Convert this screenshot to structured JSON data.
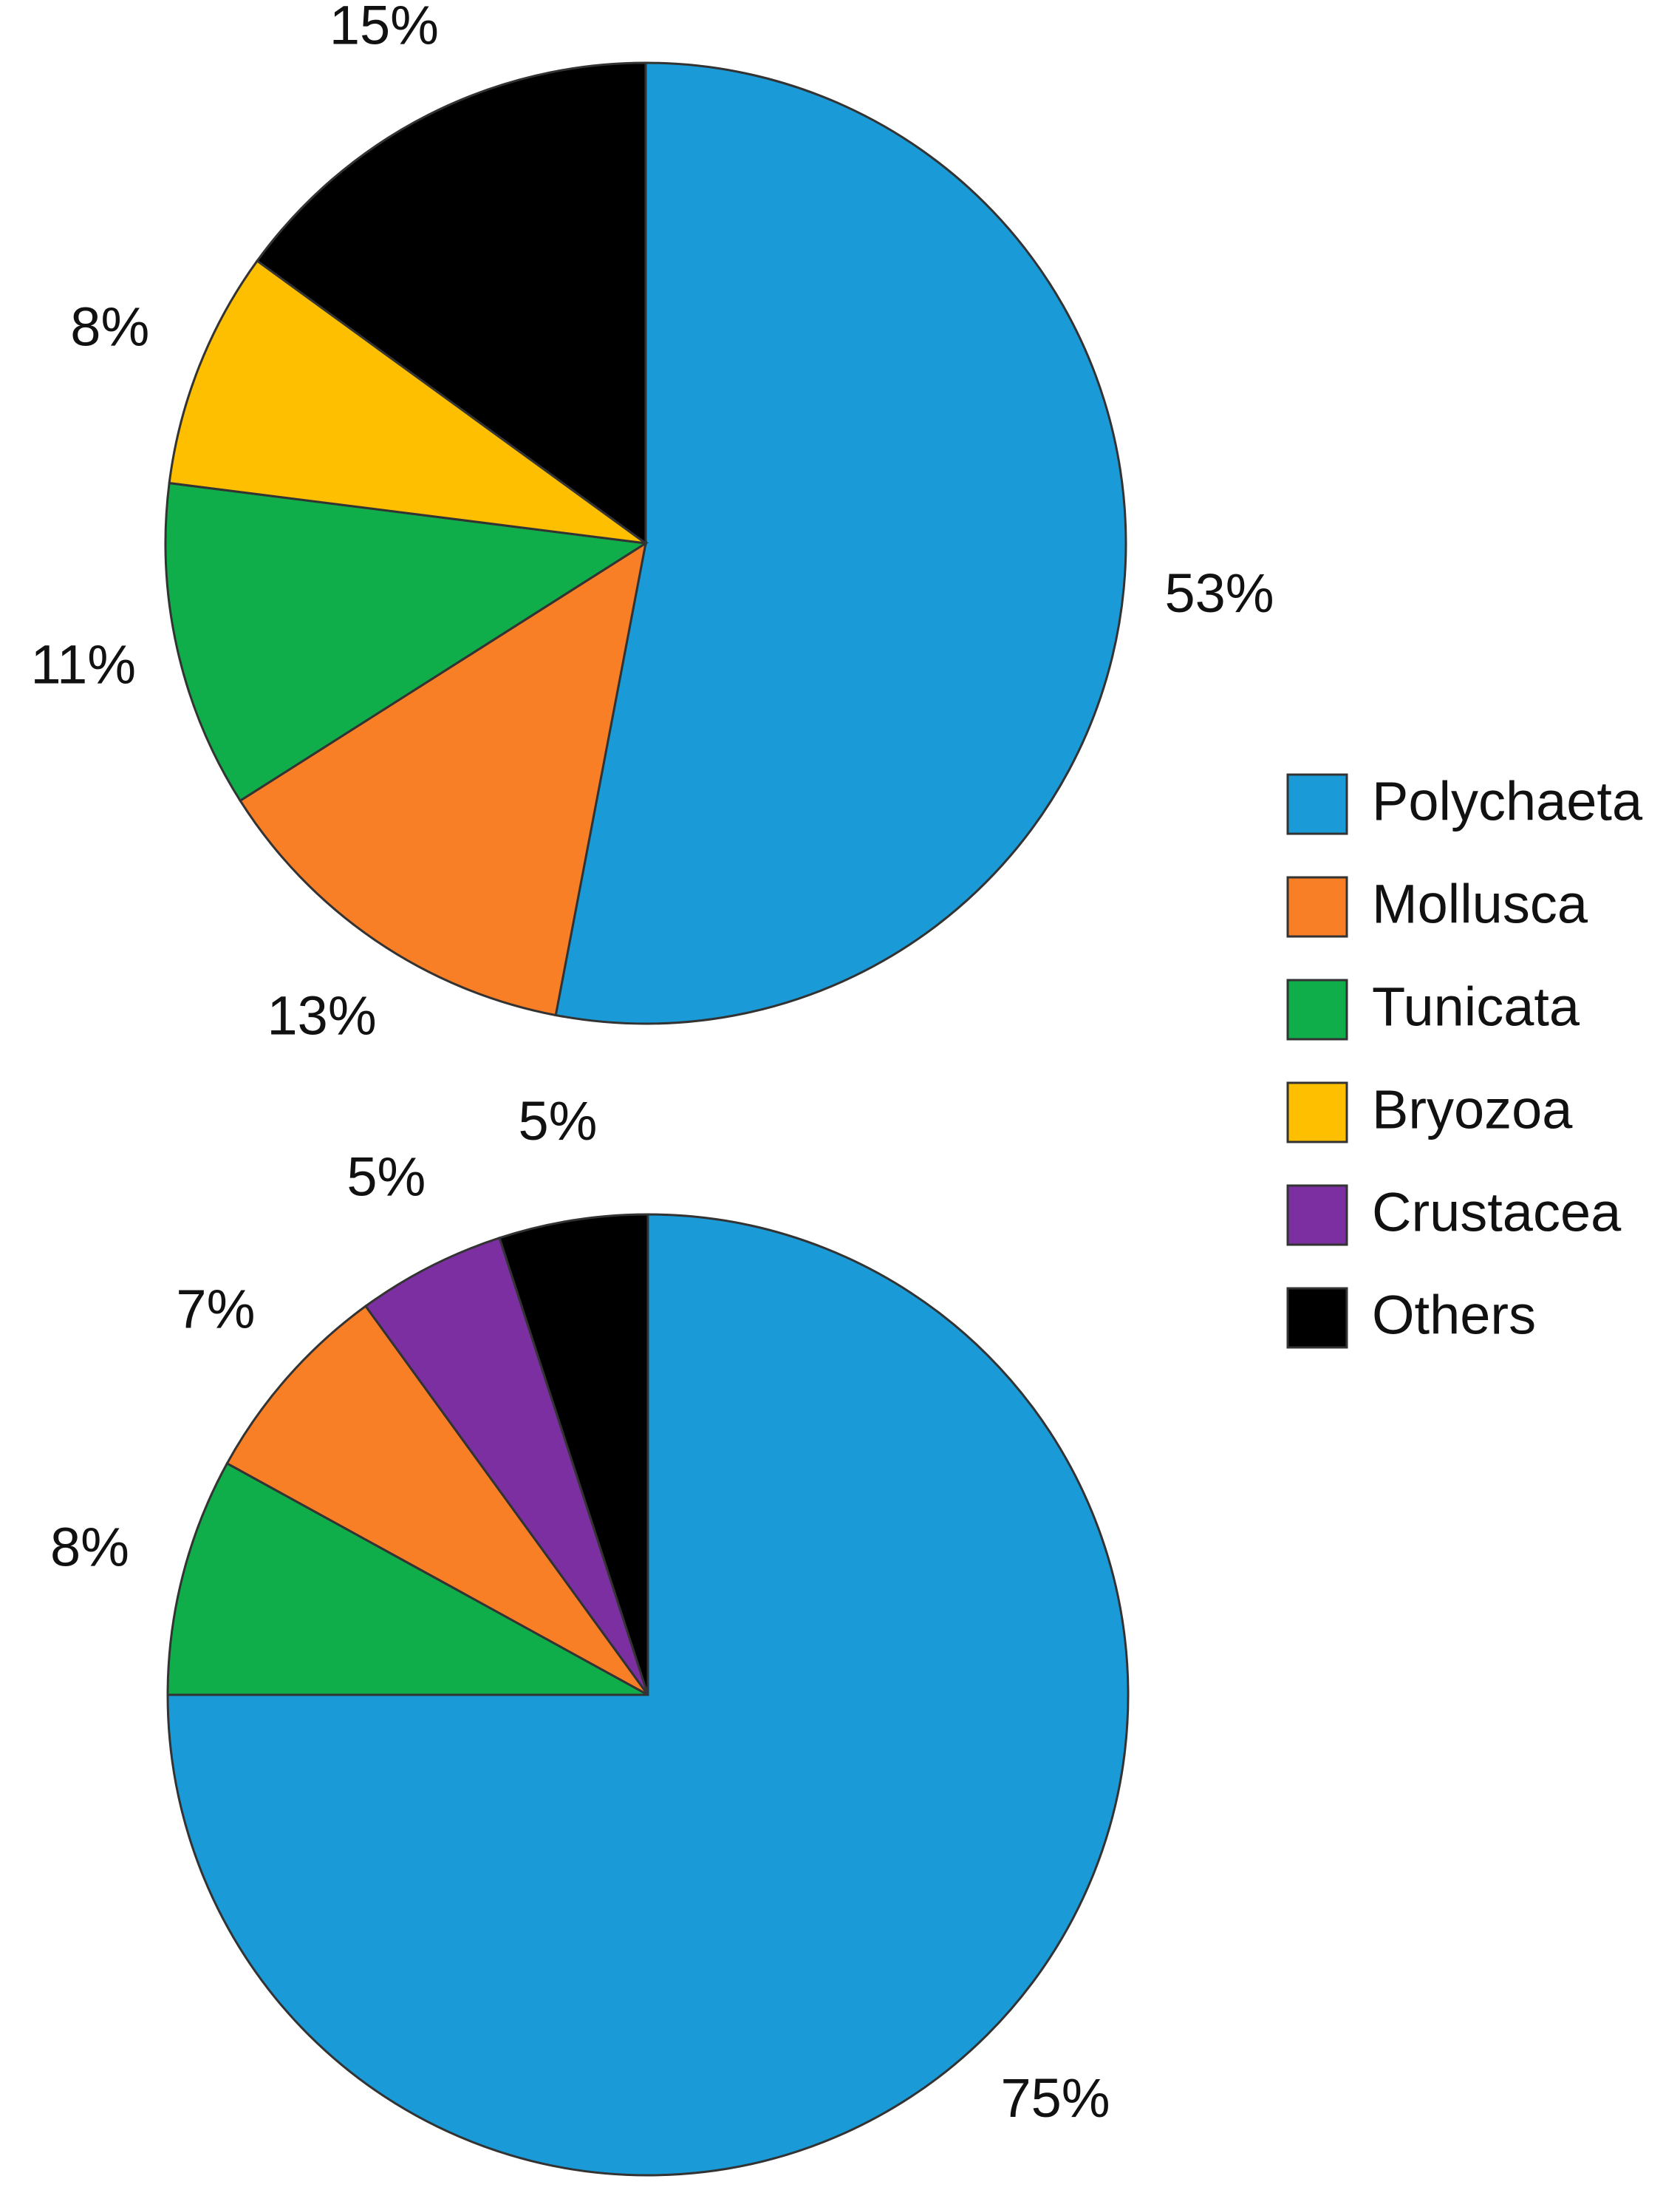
{
  "chart_data": [
    {
      "type": "pie",
      "categories": [
        "Polychaeta",
        "Mollusca",
        "Tunicata",
        "Bryozoa",
        "Others"
      ],
      "values": [
        53,
        13,
        11,
        8,
        15
      ],
      "value_labels": [
        "53%",
        "13%",
        "11%",
        "8%",
        "15%"
      ],
      "colors": [
        "#1a9bd7",
        "#f97f26",
        "#0fae4b",
        "#fdbf00",
        "#000000"
      ]
    },
    {
      "type": "pie",
      "categories": [
        "Polychaeta",
        "Tunicata",
        "Mollusca",
        "Crustacea",
        "Others"
      ],
      "values": [
        75,
        8,
        7,
        5,
        5
      ],
      "value_labels": [
        "75%",
        "8%",
        "7%",
        "5%",
        "5%"
      ],
      "colors": [
        "#1a9bd7",
        "#0fae4b",
        "#f97f26",
        "#7b2fa0",
        "#000000"
      ]
    }
  ],
  "legend": {
    "items": [
      {
        "name": "Polychaeta",
        "color": "#1a9bd7"
      },
      {
        "name": "Mollusca",
        "color": "#f97f26"
      },
      {
        "name": "Tunicata",
        "color": "#0fae4b"
      },
      {
        "name": "Bryozoa",
        "color": "#fdbf00"
      },
      {
        "name": "Crustacea",
        "color": "#7b2fa0"
      },
      {
        "name": "Others",
        "color": "#000000"
      }
    ]
  }
}
